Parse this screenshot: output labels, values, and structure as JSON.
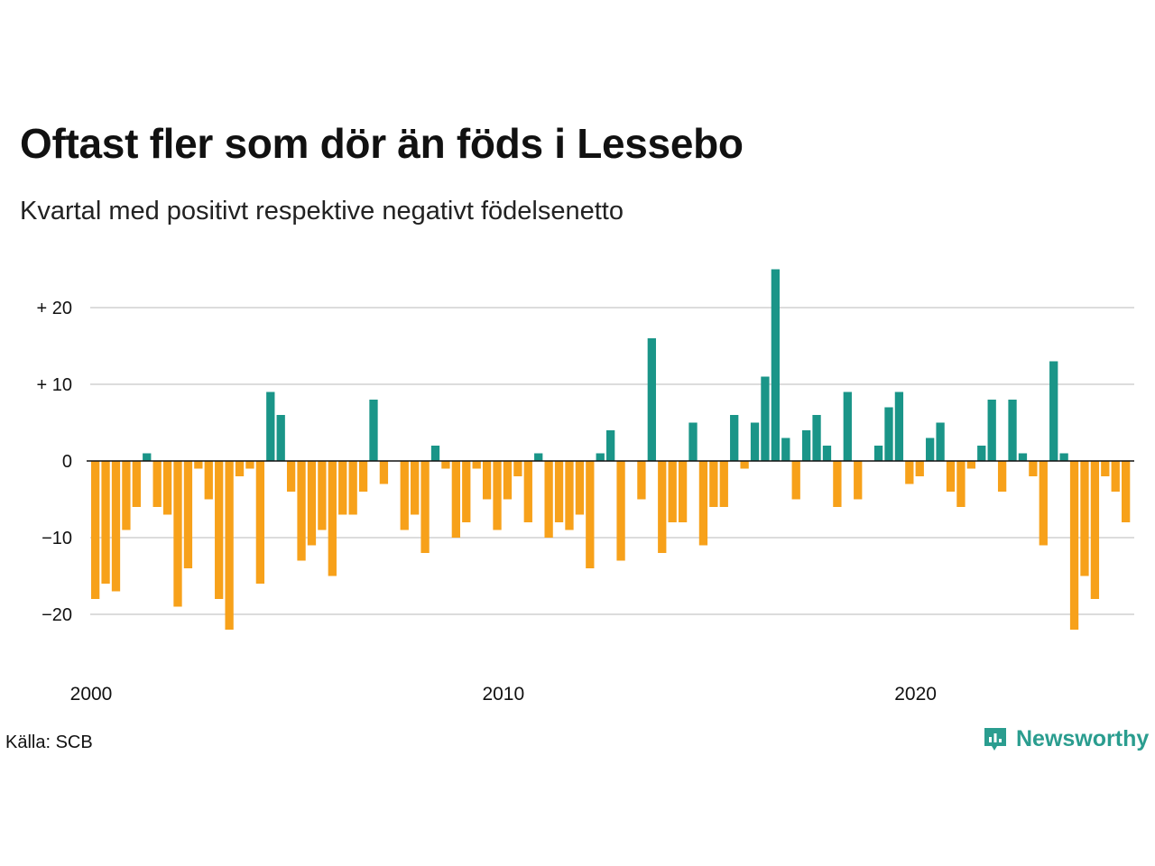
{
  "title": "Oftast fler som dör än föds i Lessebo",
  "subtitle": "Kvartal med positivt respektive negativt födelsenetto",
  "source": "Källa: SCB",
  "brand": {
    "name": "Newsworthy",
    "icon": "newsworthy-logo-icon"
  },
  "colors": {
    "positive": "#1a9588",
    "negative": "#f7a11a",
    "grid": "#dcdcdc",
    "zero": "#111111"
  },
  "chart_data": {
    "type": "bar",
    "x_start": "2000 Q1",
    "x_end": "2025 Q3",
    "x_ticks": [
      "2000",
      "2010",
      "2020"
    ],
    "y_ticks": [
      "+ 20",
      "+ 10",
      "0",
      "−10",
      "−20"
    ],
    "ylim": [
      -26,
      25
    ],
    "grid": true,
    "values": [
      -18,
      -16,
      -17,
      -9,
      -6,
      1,
      -6,
      -7,
      -19,
      -14,
      -1,
      -5,
      -18,
      -22,
      -2,
      -1,
      -16,
      9,
      6,
      -4,
      -13,
      -11,
      -9,
      -15,
      -7,
      -7,
      -4,
      8,
      -3,
      0,
      -9,
      -7,
      -12,
      2,
      -1,
      -10,
      -8,
      -1,
      -5,
      -9,
      -5,
      -2,
      -8,
      1,
      -10,
      -8,
      -9,
      -7,
      -14,
      1,
      4,
      -13,
      0,
      -5,
      16,
      -12,
      -8,
      -8,
      5,
      -11,
      -6,
      -6,
      6,
      -1,
      5,
      11,
      25,
      3,
      -5,
      4,
      6,
      2,
      -6,
      9,
      -5,
      0,
      2,
      7,
      9,
      -3,
      -2,
      3,
      5,
      -4,
      -6,
      -1,
      2,
      8,
      -4,
      8,
      1,
      -2,
      -11,
      13,
      1,
      -22,
      -15,
      -18,
      -2,
      -4,
      -8
    ]
  }
}
